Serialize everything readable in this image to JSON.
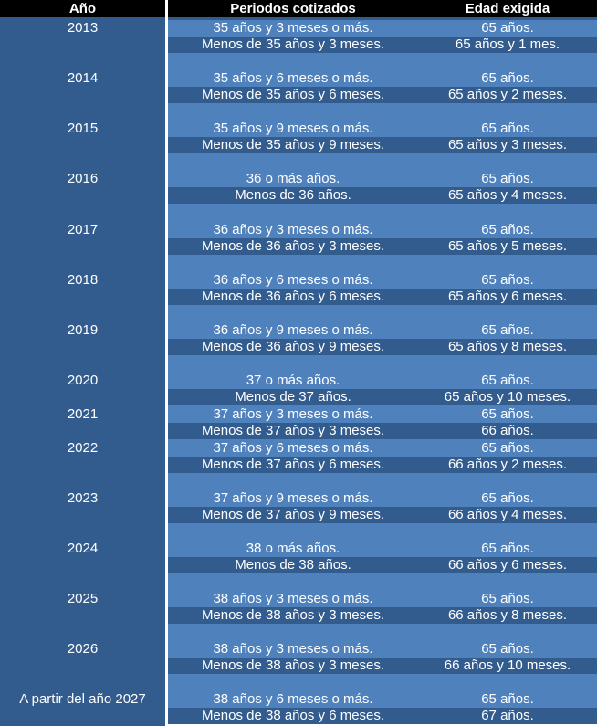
{
  "header": {
    "year": "Año",
    "periods": "Periodos cotizados",
    "age": "Edad exigida"
  },
  "colors": {
    "dark": "#325B8E",
    "light": "#4F81BD",
    "header": "#000000"
  },
  "groups": [
    {
      "year": "2013",
      "rows": [
        {
          "periods": "35 años y 3 meses o más.",
          "age": "65 años."
        },
        {
          "periods": "Menos de 35 años y 3 meses.",
          "age": "65 años y 1 mes."
        }
      ]
    },
    {
      "year": "2014",
      "rows": [
        {
          "periods": "35 años y 6 meses o más.",
          "age": "65 años."
        },
        {
          "periods": "Menos de 35 años y 6 meses.",
          "age": "65 años y 2 meses."
        }
      ]
    },
    {
      "year": "2015",
      "rows": [
        {
          "periods": "35 años y 9 meses o más.",
          "age": "65 años."
        },
        {
          "periods": "Menos de 35 años y 9 meses.",
          "age": "65 años y 3 meses."
        }
      ]
    },
    {
      "year": "2016",
      "rows": [
        {
          "periods": "36 o más años.",
          "age": "65 años."
        },
        {
          "periods": "Menos de 36 años.",
          "age": "65 años y 4 meses."
        }
      ]
    },
    {
      "year": "2017",
      "rows": [
        {
          "periods": "36 años y 3 meses o más.",
          "age": "65 años."
        },
        {
          "periods": "Menos de 36 años y 3 meses.",
          "age": "65 años y 5 meses."
        }
      ]
    },
    {
      "year": "2018",
      "rows": [
        {
          "periods": "36 años y 6 meses o más.",
          "age": "65 años."
        },
        {
          "periods": "Menos de 36 años y 6 meses.",
          "age": "65 años y 6 meses."
        }
      ]
    },
    {
      "year": "2019",
      "rows": [
        {
          "periods": "36 años y 9 meses o más.",
          "age": "65 años."
        },
        {
          "periods": "Menos de 36 años y 9 meses.",
          "age": "65 años y 8 meses."
        }
      ]
    },
    {
      "year": "2020",
      "rows": [
        {
          "periods": "37 o más años.",
          "age": "65 años."
        },
        {
          "periods": "Menos de 37 años.",
          "age": "65 años y 10 meses."
        }
      ]
    },
    {
      "year": "2021",
      "rows": [
        {
          "periods": "37 años y 3 meses o más.",
          "age": "65 años."
        },
        {
          "periods": "Menos de 37 años y 3 meses.",
          "age": "66 años."
        }
      ]
    },
    {
      "year": "2022",
      "rows": [
        {
          "periods": "37 años y 6 meses o más.",
          "age": "65 años."
        },
        {
          "periods": "Menos de 37 años y 6 meses.",
          "age": "66 años y 2 meses."
        }
      ]
    },
    {
      "year": "2023",
      "rows": [
        {
          "periods": "37 años y 9 meses o más.",
          "age": "65 años."
        },
        {
          "periods": "Menos de 37 años y 9 meses.",
          "age": "66 años y 4 meses."
        }
      ]
    },
    {
      "year": "2024",
      "rows": [
        {
          "periods": "38 o más años.",
          "age": "65 años."
        },
        {
          "periods": "Menos de 38 años.",
          "age": "66 años y 6 meses."
        }
      ]
    },
    {
      "year": "2025",
      "rows": [
        {
          "periods": "38 años y 3 meses o más.",
          "age": "65 años."
        },
        {
          "periods": "Menos de 38 años y 3 meses.",
          "age": "66 años y 8 meses."
        }
      ]
    },
    {
      "year": "2026",
      "rows": [
        {
          "periods": "38 años y 3 meses o más.",
          "age": "65 años."
        },
        {
          "periods": "Menos de 38 años y 3 meses.",
          "age": "66 años y 10 meses."
        }
      ]
    },
    {
      "year": "A partir del año 2027",
      "rows": [
        {
          "periods": "38 años y 6 meses o más.",
          "age": "65 años."
        },
        {
          "periods": "Menos de 38 años y 6 meses.",
          "age": "67 años."
        }
      ]
    }
  ]
}
